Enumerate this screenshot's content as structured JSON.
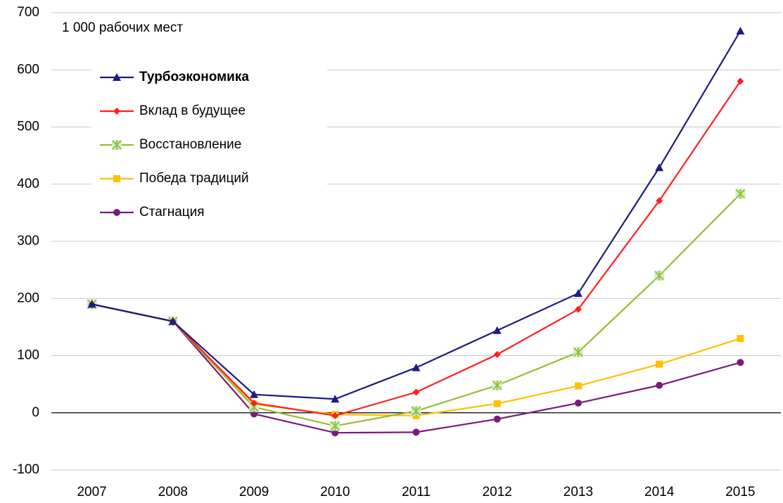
{
  "chart_data": {
    "type": "line",
    "annotation": "1 000 рабочих мест",
    "categories": [
      "2007",
      "2008",
      "2009",
      "2010",
      "2011",
      "2012",
      "2013",
      "2014",
      "2015"
    ],
    "series": [
      {
        "name": "Турбоэкономика",
        "color": "#1c1c82",
        "marker": "triangle",
        "values": [
          190,
          160,
          32,
          24,
          79,
          144,
          209,
          429,
          668
        ]
      },
      {
        "name": "Вклад в будущее",
        "color": "#ff1f1f",
        "marker": "diamond",
        "values": [
          190,
          160,
          17,
          -5,
          36,
          102,
          181,
          371,
          580
        ]
      },
      {
        "name": "Восстановление",
        "color": "#99bb33",
        "marker": "star",
        "values": [
          190,
          160,
          10,
          -23,
          3,
          48,
          106,
          240,
          383
        ]
      },
      {
        "name": "Победа традиций",
        "color": "#ffc000",
        "marker": "square",
        "values": [
          190,
          160,
          15,
          -3,
          -5,
          16,
          47,
          85,
          130
        ]
      },
      {
        "name": "Стагнация",
        "color": "#7a1a7a",
        "marker": "circle",
        "values": [
          190,
          160,
          -2,
          -35,
          -34,
          -11,
          17,
          48,
          88
        ]
      }
    ],
    "ylim": [
      -100,
      700
    ],
    "yticks": [
      -100,
      0,
      100,
      200,
      300,
      400,
      500,
      600,
      700
    ],
    "grid": true,
    "legend": "upper left"
  }
}
